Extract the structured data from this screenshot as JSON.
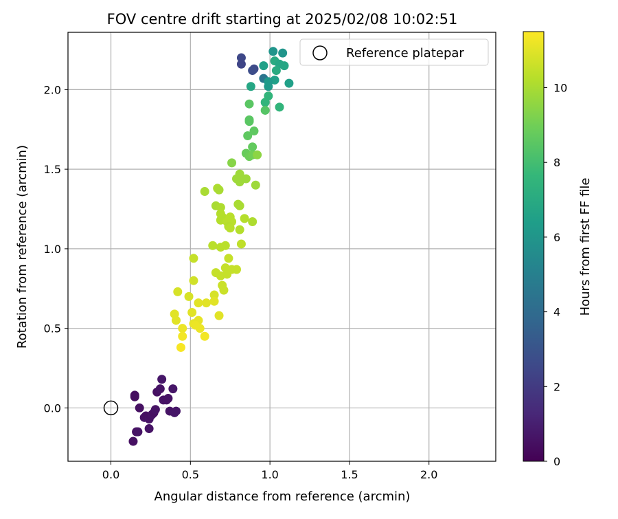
{
  "chart_data": {
    "type": "scatter",
    "title": "FOV centre drift starting at 2025/02/08 10:02:51",
    "xlabel": "Angular distance from reference (arcmin)",
    "ylabel": "Rotation from reference (arcmin)",
    "xlim": [
      -0.27,
      2.42
    ],
    "ylim": [
      -0.335,
      2.36
    ],
    "xticks": [
      0.0,
      0.5,
      1.0,
      1.5,
      2.0
    ],
    "xtick_labels": [
      "0.0",
      "0.5",
      "1.0",
      "1.5",
      "2.0"
    ],
    "yticks": [
      0.0,
      0.5,
      1.0,
      1.5,
      2.0
    ],
    "ytick_labels": [
      "0.0",
      "0.5",
      "1.0",
      "1.5",
      "2.0"
    ],
    "grid": true,
    "legend": {
      "placement": "top-right",
      "entries": [
        {
          "label": "Reference platepar",
          "marker": "open-circle"
        }
      ]
    },
    "reference_point": {
      "x": 0.0,
      "y": 0.0
    },
    "colorbar": {
      "label": "Hours from first FF file",
      "colormap": "viridis",
      "range": [
        0,
        11.5
      ],
      "ticks": [
        0,
        2,
        4,
        6,
        8,
        10
      ],
      "tick_labels": [
        "0",
        "2",
        "4",
        "6",
        "8",
        "10"
      ],
      "colors": [
        "#440154",
        "#482878",
        "#3e4989",
        "#31688e",
        "#26828e",
        "#1f9e89",
        "#35b779",
        "#6ece58",
        "#b5de2b",
        "#fde725"
      ]
    },
    "series": [
      {
        "values": [
          {
            "x": 0.14,
            "y": -0.21,
            "c": 0.5
          },
          {
            "x": 0.16,
            "y": -0.15,
            "c": 0.5
          },
          {
            "x": 0.17,
            "y": -0.15,
            "c": 0.6
          },
          {
            "x": 0.15,
            "y": 0.08,
            "c": 0.4
          },
          {
            "x": 0.15,
            "y": 0.07,
            "c": 0.4
          },
          {
            "x": 0.18,
            "y": 0.0,
            "c": 0.5
          },
          {
            "x": 0.21,
            "y": -0.06,
            "c": 0.6
          },
          {
            "x": 0.22,
            "y": -0.05,
            "c": 0.5
          },
          {
            "x": 0.24,
            "y": -0.07,
            "c": 0.6
          },
          {
            "x": 0.25,
            "y": -0.05,
            "c": 0.5
          },
          {
            "x": 0.24,
            "y": -0.13,
            "c": 0.6
          },
          {
            "x": 0.26,
            "y": -0.04,
            "c": 0.6
          },
          {
            "x": 0.27,
            "y": -0.03,
            "c": 0.5
          },
          {
            "x": 0.28,
            "y": -0.01,
            "c": 0.6
          },
          {
            "x": 0.29,
            "y": 0.1,
            "c": 0.5
          },
          {
            "x": 0.31,
            "y": 0.12,
            "c": 0.6
          },
          {
            "x": 0.32,
            "y": 0.18,
            "c": 0.7
          },
          {
            "x": 0.33,
            "y": 0.05,
            "c": 0.6
          },
          {
            "x": 0.35,
            "y": 0.05,
            "c": 0.6
          },
          {
            "x": 0.36,
            "y": 0.06,
            "c": 0.6
          },
          {
            "x": 0.37,
            "y": -0.02,
            "c": 0.6
          },
          {
            "x": 0.39,
            "y": 0.12,
            "c": 0.7
          },
          {
            "x": 0.4,
            "y": -0.03,
            "c": 0.7
          },
          {
            "x": 0.41,
            "y": -0.02,
            "c": 0.7
          },
          {
            "x": 0.82,
            "y": 2.2,
            "c": 2.5
          },
          {
            "x": 0.82,
            "y": 2.16,
            "c": 2.4
          },
          {
            "x": 0.9,
            "y": 2.13,
            "c": 2.6
          },
          {
            "x": 0.89,
            "y": 2.12,
            "c": 2.7
          },
          {
            "x": 0.96,
            "y": 2.07,
            "c": 4.5
          },
          {
            "x": 1.02,
            "y": 2.24,
            "c": 6.0
          },
          {
            "x": 1.08,
            "y": 2.23,
            "c": 6.0
          },
          {
            "x": 0.96,
            "y": 2.15,
            "c": 6.5
          },
          {
            "x": 1.03,
            "y": 2.18,
            "c": 7.0
          },
          {
            "x": 1.06,
            "y": 2.16,
            "c": 6.8
          },
          {
            "x": 1.09,
            "y": 2.15,
            "c": 6.8
          },
          {
            "x": 1.04,
            "y": 2.12,
            "c": 7.0
          },
          {
            "x": 1.03,
            "y": 2.06,
            "c": 6.5
          },
          {
            "x": 0.99,
            "y": 2.05,
            "c": 6.2
          },
          {
            "x": 0.99,
            "y": 2.02,
            "c": 6.2
          },
          {
            "x": 0.88,
            "y": 2.02,
            "c": 6.8
          },
          {
            "x": 1.12,
            "y": 2.04,
            "c": 6.5
          },
          {
            "x": 0.99,
            "y": 1.96,
            "c": 7.5
          },
          {
            "x": 0.97,
            "y": 1.92,
            "c": 7.5
          },
          {
            "x": 1.06,
            "y": 1.89,
            "c": 7.5
          },
          {
            "x": 0.97,
            "y": 1.87,
            "c": 8.4
          },
          {
            "x": 0.87,
            "y": 1.91,
            "c": 8.5
          },
          {
            "x": 0.87,
            "y": 1.81,
            "c": 8.5
          },
          {
            "x": 0.87,
            "y": 1.8,
            "c": 8.5
          },
          {
            "x": 0.9,
            "y": 1.74,
            "c": 8.6
          },
          {
            "x": 0.86,
            "y": 1.71,
            "c": 8.6
          },
          {
            "x": 0.89,
            "y": 1.64,
            "c": 8.7
          },
          {
            "x": 0.85,
            "y": 1.6,
            "c": 8.8
          },
          {
            "x": 0.87,
            "y": 1.58,
            "c": 8.9
          },
          {
            "x": 0.89,
            "y": 1.59,
            "c": 9.0
          },
          {
            "x": 0.92,
            "y": 1.59,
            "c": 9.5
          },
          {
            "x": 0.76,
            "y": 1.54,
            "c": 9.4
          },
          {
            "x": 0.81,
            "y": 1.47,
            "c": 9.8
          },
          {
            "x": 0.79,
            "y": 1.44,
            "c": 9.8
          },
          {
            "x": 0.81,
            "y": 1.42,
            "c": 9.8
          },
          {
            "x": 0.85,
            "y": 1.44,
            "c": 9.8
          },
          {
            "x": 0.91,
            "y": 1.4,
            "c": 9.8
          },
          {
            "x": 0.59,
            "y": 1.36,
            "c": 10.0
          },
          {
            "x": 0.67,
            "y": 1.38,
            "c": 10.1
          },
          {
            "x": 0.68,
            "y": 1.37,
            "c": 10.0
          },
          {
            "x": 0.8,
            "y": 1.28,
            "c": 10.0
          },
          {
            "x": 0.81,
            "y": 1.27,
            "c": 10.0
          },
          {
            "x": 0.66,
            "y": 1.27,
            "c": 10.0
          },
          {
            "x": 0.69,
            "y": 1.26,
            "c": 10.1
          },
          {
            "x": 0.69,
            "y": 1.22,
            "c": 10.2
          },
          {
            "x": 0.7,
            "y": 1.2,
            "c": 10.2
          },
          {
            "x": 0.69,
            "y": 1.18,
            "c": 10.2
          },
          {
            "x": 0.73,
            "y": 1.17,
            "c": 10.3
          },
          {
            "x": 0.75,
            "y": 1.2,
            "c": 10.3
          },
          {
            "x": 0.76,
            "y": 1.17,
            "c": 10.3
          },
          {
            "x": 0.84,
            "y": 1.19,
            "c": 10.2
          },
          {
            "x": 0.89,
            "y": 1.17,
            "c": 10.1
          },
          {
            "x": 0.74,
            "y": 1.14,
            "c": 10.2
          },
          {
            "x": 0.75,
            "y": 1.13,
            "c": 10.3
          },
          {
            "x": 0.81,
            "y": 1.12,
            "c": 10.2
          },
          {
            "x": 0.64,
            "y": 1.02,
            "c": 10.3
          },
          {
            "x": 0.69,
            "y": 1.01,
            "c": 10.3
          },
          {
            "x": 0.72,
            "y": 1.02,
            "c": 10.3
          },
          {
            "x": 0.82,
            "y": 1.03,
            "c": 10.4
          },
          {
            "x": 0.52,
            "y": 0.94,
            "c": 10.5
          },
          {
            "x": 0.74,
            "y": 0.94,
            "c": 10.5
          },
          {
            "x": 0.66,
            "y": 0.85,
            "c": 10.5
          },
          {
            "x": 0.69,
            "y": 0.83,
            "c": 10.5
          },
          {
            "x": 0.72,
            "y": 0.88,
            "c": 10.5
          },
          {
            "x": 0.73,
            "y": 0.84,
            "c": 10.5
          },
          {
            "x": 0.76,
            "y": 0.87,
            "c": 10.5
          },
          {
            "x": 0.79,
            "y": 0.87,
            "c": 10.5
          },
          {
            "x": 0.52,
            "y": 0.8,
            "c": 10.7
          },
          {
            "x": 0.7,
            "y": 0.77,
            "c": 10.6
          },
          {
            "x": 0.71,
            "y": 0.74,
            "c": 10.6
          },
          {
            "x": 0.42,
            "y": 0.73,
            "c": 10.8
          },
          {
            "x": 0.49,
            "y": 0.7,
            "c": 10.8
          },
          {
            "x": 0.65,
            "y": 0.71,
            "c": 10.8
          },
          {
            "x": 0.55,
            "y": 0.66,
            "c": 11.0
          },
          {
            "x": 0.6,
            "y": 0.66,
            "c": 11.0
          },
          {
            "x": 0.65,
            "y": 0.67,
            "c": 11.0
          },
          {
            "x": 0.4,
            "y": 0.59,
            "c": 11.0
          },
          {
            "x": 0.41,
            "y": 0.55,
            "c": 11.0
          },
          {
            "x": 0.51,
            "y": 0.6,
            "c": 11.0
          },
          {
            "x": 0.68,
            "y": 0.58,
            "c": 11.0
          },
          {
            "x": 0.52,
            "y": 0.53,
            "c": 11.1
          },
          {
            "x": 0.55,
            "y": 0.55,
            "c": 11.1
          },
          {
            "x": 0.45,
            "y": 0.5,
            "c": 11.2
          },
          {
            "x": 0.53,
            "y": 0.52,
            "c": 11.2
          },
          {
            "x": 0.56,
            "y": 0.5,
            "c": 11.2
          },
          {
            "x": 0.45,
            "y": 0.45,
            "c": 11.3
          },
          {
            "x": 0.59,
            "y": 0.45,
            "c": 11.3
          },
          {
            "x": 0.44,
            "y": 0.38,
            "c": 11.4
          }
        ]
      }
    ]
  }
}
